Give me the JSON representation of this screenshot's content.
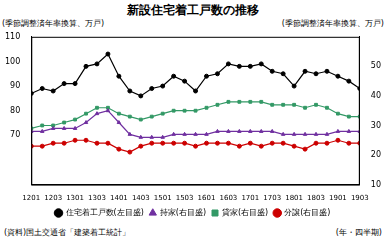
{
  "chart_data": {
    "type": "line",
    "title": "新設住宅着工戸数の推移",
    "y_label": "(季節調整済年率換算、万戸)",
    "y2_label": "(季節調整済年率換算、万戸)",
    "x_label": "(年・四半期)",
    "source": "(資料)国土交通省「建築着工統計」",
    "categories": [
      "1201",
      null,
      "1203",
      null,
      "1301",
      null,
      "1303",
      null,
      "1401",
      null,
      "1403",
      null,
      "1501",
      null,
      "1503",
      null,
      "1601",
      null,
      "1603",
      null,
      "1701",
      null,
      "1703",
      null,
      "1801",
      null,
      "1803",
      null,
      "1901",
      null,
      "1903"
    ],
    "ylim": [
      50,
      110
    ],
    "yticks": [
      70,
      80,
      90,
      100,
      110
    ],
    "y2lim": [
      10,
      60
    ],
    "y2ticks": [
      10,
      20,
      30,
      40,
      50
    ],
    "grid": false,
    "legend": "bottom",
    "series": [
      {
        "name": "住宅着工戸数(左目盛)",
        "color": "#000000",
        "marker": "circle",
        "values": [
          87,
          89,
          88,
          91,
          91,
          98,
          99,
          103,
          94,
          88,
          86,
          89,
          90,
          94,
          92,
          88,
          94,
          95,
          99,
          98,
          98,
          99,
          96,
          95,
          90,
          96,
          95,
          96,
          94,
          92,
          89
        ]
      },
      {
        "name": "持家(右目盛)",
        "color": "#7030a0",
        "marker": "triangle",
        "axis": "y2",
        "values": [
          28,
          28,
          29,
          29,
          29,
          31,
          34,
          35,
          31,
          27,
          26,
          26,
          26,
          27,
          27,
          27,
          27,
          28,
          28,
          28,
          28,
          28,
          28,
          27,
          27,
          27,
          27,
          27,
          28,
          28,
          28
        ]
      },
      {
        "name": "貸家(右目盛)",
        "color": "#339966",
        "marker": "square",
        "axis": "y2",
        "values": [
          29,
          30,
          30,
          31,
          32,
          34,
          36,
          36,
          34,
          33,
          32,
          33,
          34,
          35,
          35,
          35,
          36,
          37,
          38,
          38,
          38,
          38,
          37,
          37,
          37,
          36,
          37,
          36,
          34,
          33,
          33
        ]
      },
      {
        "name": "分譲(右目盛)",
        "color": "#cc0000",
        "marker": "circle",
        "axis": "y2",
        "values": [
          23,
          23,
          24,
          24,
          25,
          25,
          24,
          24,
          22,
          21,
          23,
          24,
          24,
          24,
          24,
          23,
          24,
          24,
          24,
          23,
          24,
          23,
          24,
          24,
          23,
          22,
          24,
          24,
          25,
          24,
          24
        ]
      }
    ]
  }
}
